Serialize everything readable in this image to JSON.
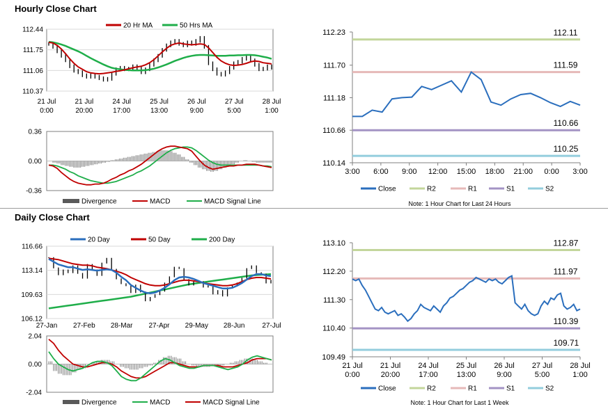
{
  "hourly_title": "Hourly Close Chart",
  "daily_title": "Daily Close Chart",
  "colors": {
    "price": "#000000",
    "ma_fast": "#c00000",
    "ma_slow": "#1fae4a",
    "close": "#2a6ebd",
    "r2": "#c3d69b",
    "r1": "#e6b9b8",
    "s1": "#a393c4",
    "s2": "#93cddd",
    "hist": "#7f7f7f"
  },
  "notes": {
    "hourly": "Note: 1 Hour Chart for Last 24 Hours",
    "daily": "Note: 1 Hour Chart for Last 1 Week"
  },
  "chart_data": [
    {
      "id": "hourly_price",
      "type": "line",
      "legend": [
        "20 Hr MA",
        "50 Hrs MA"
      ],
      "ylim": [
        110.37,
        112.44
      ],
      "yticks": [
        "112.44",
        "111.75",
        "111.06",
        "110.37"
      ],
      "xticks": [
        [
          "21 Jul",
          "0:00"
        ],
        [
          "21 Jul",
          "20:00"
        ],
        [
          "24 Jul",
          "17:00"
        ],
        [
          "25 Jul",
          "13:00"
        ],
        [
          "26 Jul",
          "9:00"
        ],
        [
          "27 Jul",
          "5:00"
        ],
        [
          "28 Jul",
          "1:00"
        ]
      ],
      "series": [
        {
          "key": "price",
          "values": [
            111.95,
            111.85,
            111.7,
            111.55,
            111.4,
            111.2,
            111.05,
            111.0,
            110.9,
            110.85,
            110.9,
            110.85,
            110.8,
            110.75,
            110.78,
            110.95,
            111.1,
            111.15,
            111.1,
            111.12,
            111.2,
            111.15,
            111.0,
            111.1,
            111.25,
            111.4,
            111.55,
            111.75,
            111.9,
            112.0,
            112.05,
            111.95,
            111.9,
            112.0,
            111.95,
            112.05,
            112.15,
            111.85,
            111.3,
            111.1,
            110.95,
            110.92,
            111.0,
            111.15,
            111.3,
            111.35,
            111.45,
            111.5,
            111.4,
            111.25,
            111.1,
            111.12,
            111.2,
            111.15
          ]
        },
        {
          "key": "ma_fast",
          "values": [
            112.0,
            111.98,
            111.9,
            111.78,
            111.62,
            111.45,
            111.3,
            111.18,
            111.1,
            111.02,
            110.98,
            110.96,
            110.95,
            110.96,
            110.98,
            111.0,
            111.03,
            111.05,
            111.08,
            111.12,
            111.15,
            111.18,
            111.2,
            111.25,
            111.32,
            111.42,
            111.55,
            111.68,
            111.8,
            111.9,
            111.95,
            111.98,
            111.95,
            111.93,
            111.92,
            111.93,
            111.95,
            111.93,
            111.82,
            111.66,
            111.5,
            111.38,
            111.3,
            111.25,
            111.23,
            111.24,
            111.26,
            111.3,
            111.35,
            111.38,
            111.36,
            111.32,
            111.3,
            111.28
          ]
        },
        {
          "key": "ma_slow",
          "values": [
            112.02,
            112.0,
            111.97,
            111.93,
            111.88,
            111.82,
            111.76,
            111.7,
            111.63,
            111.55,
            111.47,
            111.4,
            111.33,
            111.26,
            111.2,
            111.15,
            111.12,
            111.1,
            111.08,
            111.07,
            111.06,
            111.06,
            111.06,
            111.07,
            111.09,
            111.12,
            111.16,
            111.21,
            111.26,
            111.32,
            111.38,
            111.43,
            111.48,
            111.52,
            111.55,
            111.57,
            111.58,
            111.58,
            111.57,
            111.56,
            111.55,
            111.55,
            111.55,
            111.56,
            111.56,
            111.57,
            111.57,
            111.58,
            111.58,
            111.57,
            111.55,
            111.52,
            111.49,
            111.45
          ]
        }
      ]
    },
    {
      "id": "hourly_macd",
      "type": "line",
      "legend": [
        "Divergence",
        "MACD",
        "MACD Signal Line"
      ],
      "ylim": [
        -0.36,
        0.36
      ],
      "yticks": [
        "0.36",
        "0.00",
        "-0.36"
      ],
      "series": [
        {
          "key": "hist",
          "values": [
            0.0,
            -0.02,
            -0.03,
            -0.05,
            -0.06,
            -0.07,
            -0.08,
            -0.08,
            -0.07,
            -0.06,
            -0.05,
            -0.04,
            -0.03,
            -0.02,
            -0.01,
            0.01,
            0.02,
            0.03,
            0.04,
            0.05,
            0.06,
            0.07,
            0.08,
            0.09,
            0.1,
            0.11,
            0.12,
            0.13,
            0.13,
            0.12,
            0.1,
            0.08,
            0.05,
            0.02,
            -0.02,
            -0.05,
            -0.08,
            -0.1,
            -0.12,
            -0.13,
            -0.12,
            -0.1,
            -0.08,
            -0.06,
            -0.04,
            -0.02,
            0.0,
            0.01,
            0.0,
            -0.01,
            -0.02,
            -0.02,
            -0.02,
            -0.02
          ]
        },
        {
          "key": "macd",
          "values": [
            -0.05,
            -0.06,
            -0.09,
            -0.14,
            -0.18,
            -0.22,
            -0.25,
            -0.27,
            -0.28,
            -0.29,
            -0.29,
            -0.28,
            -0.28,
            -0.27,
            -0.25,
            -0.22,
            -0.2,
            -0.17,
            -0.15,
            -0.12,
            -0.1,
            -0.07,
            -0.04,
            0.0,
            0.04,
            0.08,
            0.12,
            0.15,
            0.17,
            0.18,
            0.18,
            0.17,
            0.16,
            0.15,
            0.12,
            0.06,
            0.0,
            -0.05,
            -0.08,
            -0.1,
            -0.09,
            -0.08,
            -0.07,
            -0.06,
            -0.06,
            -0.05,
            -0.05,
            -0.04,
            -0.04,
            -0.04,
            -0.05,
            -0.06,
            -0.07,
            -0.08
          ]
        },
        {
          "key": "signal",
          "values": [
            -0.05,
            -0.05,
            -0.06,
            -0.08,
            -0.1,
            -0.13,
            -0.15,
            -0.18,
            -0.2,
            -0.22,
            -0.24,
            -0.25,
            -0.26,
            -0.27,
            -0.27,
            -0.26,
            -0.25,
            -0.23,
            -0.21,
            -0.19,
            -0.17,
            -0.14,
            -0.12,
            -0.09,
            -0.06,
            -0.02,
            0.02,
            0.06,
            0.1,
            0.13,
            0.15,
            0.16,
            0.17,
            0.17,
            0.16,
            0.13,
            0.09,
            0.05,
            0.01,
            -0.02,
            -0.04,
            -0.05,
            -0.05,
            -0.05,
            -0.05,
            -0.05,
            -0.05,
            -0.05,
            -0.05,
            -0.05,
            -0.05,
            -0.06,
            -0.06,
            -0.07
          ]
        }
      ]
    },
    {
      "id": "hourly_close",
      "type": "line",
      "ylim": [
        110.14,
        112.23
      ],
      "yticks": [
        "112.23",
        "111.70",
        "111.18",
        "110.66",
        "110.14"
      ],
      "xticks": [
        "3:00",
        "6:00",
        "9:00",
        "12:00",
        "15:00",
        "18:00",
        "21:00",
        "0:00",
        "3:00"
      ],
      "levels": [
        {
          "key": "r2",
          "value": 112.11,
          "label": "112.11"
        },
        {
          "key": "r1",
          "value": 111.59,
          "label": "111.59"
        },
        {
          "key": "s1",
          "value": 110.66,
          "label": "110.66"
        },
        {
          "key": "s2",
          "value": 110.25,
          "label": "110.25"
        }
      ],
      "legend": [
        "Close",
        "R2",
        "R1",
        "S1",
        "S2"
      ],
      "series": [
        {
          "key": "close",
          "values": [
            110.88,
            110.88,
            110.98,
            110.95,
            111.16,
            111.18,
            111.19,
            111.36,
            111.31,
            111.38,
            111.45,
            111.27,
            111.59,
            111.47,
            111.11,
            111.06,
            111.16,
            111.23,
            111.25,
            111.18,
            111.1,
            111.04,
            111.12,
            111.06
          ]
        }
      ]
    },
    {
      "id": "daily_price",
      "type": "line",
      "legend": [
        "20 Day",
        "50 Day",
        "200 Day"
      ],
      "ylim": [
        106.12,
        116.66
      ],
      "yticks": [
        "116.66",
        "113.14",
        "109.63",
        "106.12"
      ],
      "xticks": [
        "27-Jan",
        "27-Feb",
        "28-Mar",
        "27-Apr",
        "29-May",
        "28-Jun",
        "27-Jul"
      ],
      "series": [
        {
          "key": "price",
          "values": [
            115.0,
            113.5,
            112.5,
            113.2,
            112.8,
            113.8,
            112.7,
            112.0,
            114.0,
            113.2,
            112.4,
            114.2,
            114.9,
            113.3,
            111.9,
            111.2,
            110.9,
            109.9,
            111.0,
            110.0,
            108.7,
            109.2,
            109.6,
            110.1,
            111.3,
            112.2,
            113.6,
            113.4,
            111.8,
            111.0,
            111.6,
            111.5,
            110.7,
            110.9,
            109.7,
            110.2,
            109.4,
            110.6,
            111.0,
            111.3,
            112.0,
            113.4,
            113.8,
            112.8,
            112.6,
            111.3,
            111.7
          ]
        },
        {
          "key": "ma_fast",
          "values": [
            114.8,
            114.4,
            114.0,
            113.8,
            113.6,
            113.6,
            113.4,
            113.2,
            113.3,
            113.2,
            113.1,
            113.2,
            113.3,
            113.2,
            112.8,
            112.2,
            111.7,
            111.0,
            110.6,
            110.2,
            109.9,
            109.8,
            109.9,
            110.2,
            110.6,
            111.1,
            111.7,
            112.1,
            112.2,
            112.1,
            111.9,
            111.6,
            111.3,
            111.1,
            110.9,
            110.7,
            110.5,
            110.5,
            110.6,
            110.9,
            111.3,
            111.8,
            112.3,
            112.6,
            112.6,
            112.4,
            112.3
          ]
        },
        {
          "key": "ma_slow",
          "values": [
            114.9,
            114.8,
            114.7,
            114.5,
            114.3,
            114.1,
            114.0,
            113.9,
            113.9,
            113.8,
            113.6,
            113.5,
            113.4,
            113.2,
            113.0,
            112.8,
            112.5,
            112.1,
            111.8,
            111.5,
            111.2,
            111.0,
            110.9,
            110.9,
            111.0,
            111.2,
            111.4,
            111.6,
            111.7,
            111.7,
            111.6,
            111.5,
            111.3,
            111.2,
            111.1,
            111.0,
            110.9,
            110.9,
            111.0,
            111.2,
            111.5,
            111.8,
            112.0,
            112.1,
            112.1,
            112.0,
            111.9
          ]
        },
        {
          "key": "ma_200",
          "values": [
            107.6,
            107.7,
            107.8,
            107.9,
            108.0,
            108.1,
            108.2,
            108.3,
            108.4,
            108.5,
            108.6,
            108.7,
            108.8,
            108.9,
            109.0,
            109.1,
            109.2,
            109.3,
            109.45,
            109.6,
            109.75,
            109.9,
            110.05,
            110.2,
            110.35,
            110.5,
            110.65,
            110.8,
            110.95,
            111.1,
            111.2,
            111.3,
            111.4,
            111.5,
            111.6,
            111.7,
            111.8,
            111.9,
            112.0,
            112.1,
            112.2,
            112.3,
            112.4,
            112.45,
            112.5,
            112.55,
            112.6
          ]
        }
      ]
    },
    {
      "id": "daily_macd",
      "type": "line",
      "legend": [
        "Divergence",
        "MACD",
        "MACD Signal Line"
      ],
      "ylim": [
        -2.04,
        2.04
      ],
      "yticks": [
        "2.04",
        "0.00",
        "-2.04"
      ],
      "series": [
        {
          "key": "hist",
          "values": [
            0.2,
            -0.5,
            -0.7,
            -0.8,
            -0.8,
            -0.6,
            -0.4,
            -0.3,
            0.0,
            0.1,
            0.2,
            0.3,
            0.3,
            0.2,
            0.0,
            -0.2,
            -0.3,
            -0.4,
            -0.4,
            -0.3,
            -0.2,
            -0.1,
            0.1,
            0.3,
            0.5,
            0.6,
            0.5,
            0.4,
            0.2,
            0.0,
            -0.1,
            -0.2,
            -0.2,
            -0.2,
            -0.1,
            -0.1,
            -0.1,
            0.0,
            0.1,
            0.2,
            0.3,
            0.4,
            0.4,
            0.3,
            0.2,
            0.1,
            0.0
          ]
        },
        {
          "key": "macd",
          "values": [
            0.9,
            0.4,
            0.0,
            -0.2,
            -0.4,
            -0.5,
            -0.4,
            -0.3,
            -0.1,
            0.1,
            0.2,
            0.2,
            0.1,
            -0.1,
            -0.5,
            -0.9,
            -1.1,
            -1.2,
            -1.2,
            -1.0,
            -0.7,
            -0.4,
            -0.1,
            0.2,
            0.4,
            0.3,
            0.1,
            -0.1,
            -0.2,
            -0.3,
            -0.3,
            -0.2,
            -0.1,
            -0.1,
            -0.1,
            -0.2,
            -0.3,
            -0.4,
            -0.3,
            -0.2,
            0.0,
            0.3,
            0.5,
            0.6,
            0.5,
            0.4,
            0.3
          ]
        },
        {
          "key": "signal",
          "values": [
            1.8,
            1.5,
            1.0,
            0.6,
            0.3,
            0.0,
            -0.1,
            -0.2,
            -0.2,
            -0.1,
            0.0,
            0.1,
            0.1,
            0.0,
            -0.2,
            -0.5,
            -0.7,
            -0.9,
            -1.0,
            -1.0,
            -0.9,
            -0.7,
            -0.5,
            -0.3,
            -0.1,
            0.1,
            0.1,
            0.0,
            -0.1,
            -0.2,
            -0.2,
            -0.2,
            -0.1,
            -0.1,
            -0.1,
            -0.1,
            -0.2,
            -0.2,
            -0.2,
            -0.1,
            0.0,
            0.1,
            0.3,
            0.4,
            0.4,
            0.4,
            0.3
          ]
        }
      ]
    },
    {
      "id": "daily_close",
      "type": "line",
      "ylim": [
        109.49,
        113.1
      ],
      "yticks": [
        "113.10",
        "112.20",
        "111.30",
        "110.40",
        "109.49"
      ],
      "xticks": [
        [
          "21 Jul",
          "0:00"
        ],
        [
          "21 Jul",
          "20:00"
        ],
        [
          "24 Jul",
          "17:00"
        ],
        [
          "25 Jul",
          "13:00"
        ],
        [
          "26 Jul",
          "9:00"
        ],
        [
          "27 Jul",
          "5:00"
        ],
        [
          "28 Jul",
          "1:00"
        ]
      ],
      "levels": [
        {
          "key": "r2",
          "value": 112.87,
          "label": "112.87"
        },
        {
          "key": "r1",
          "value": 111.97,
          "label": "111.97"
        },
        {
          "key": "s1",
          "value": 110.39,
          "label": "110.39"
        },
        {
          "key": "s2",
          "value": 109.71,
          "label": "109.71"
        }
      ],
      "legend": [
        "Close",
        "R2",
        "R1",
        "S1",
        "S2"
      ],
      "series": [
        {
          "key": "close",
          "values": [
            111.95,
            111.9,
            111.95,
            111.75,
            111.6,
            111.4,
            111.2,
            111.0,
            110.95,
            111.05,
            110.9,
            110.85,
            110.9,
            110.95,
            110.8,
            110.85,
            110.75,
            110.62,
            110.7,
            110.85,
            110.95,
            111.15,
            111.05,
            111.0,
            110.95,
            111.1,
            111.0,
            110.9,
            111.1,
            111.2,
            111.35,
            111.4,
            111.5,
            111.6,
            111.65,
            111.75,
            111.85,
            111.9,
            112.0,
            111.95,
            111.9,
            111.85,
            111.95,
            111.9,
            111.95,
            111.85,
            111.8,
            111.9,
            112.0,
            112.05,
            111.2,
            111.1,
            111.0,
            111.15,
            110.95,
            110.85,
            110.8,
            110.85,
            111.1,
            111.25,
            111.15,
            111.35,
            111.3,
            111.45,
            111.5,
            111.1,
            111.0,
            111.05,
            111.15,
            110.95,
            111.0
          ]
        }
      ]
    }
  ]
}
